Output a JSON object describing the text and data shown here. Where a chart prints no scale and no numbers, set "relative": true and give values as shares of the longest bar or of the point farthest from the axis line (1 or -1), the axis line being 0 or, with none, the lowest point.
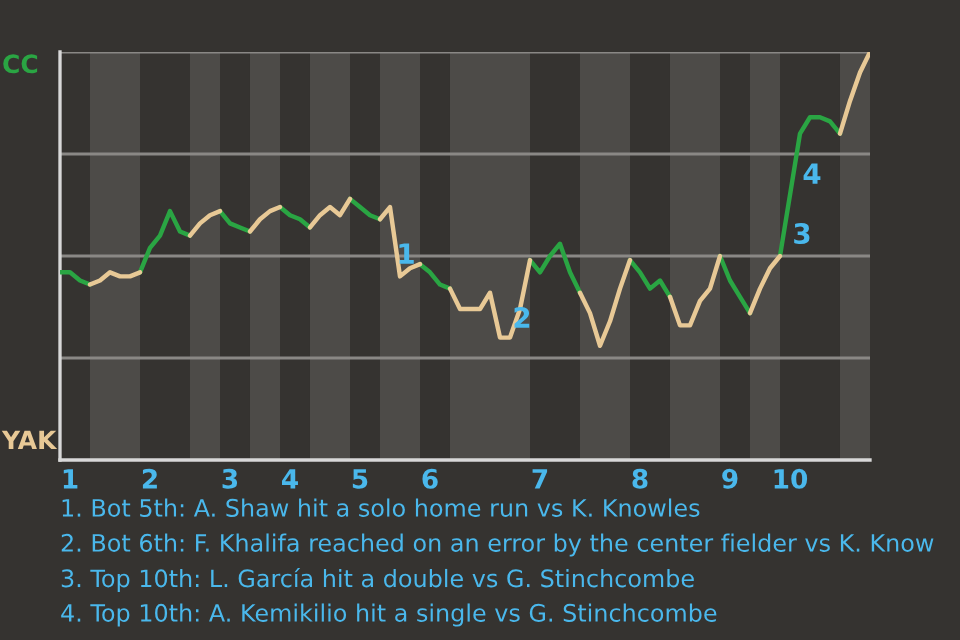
{
  "chart_data": {
    "type": "line",
    "relative": true,
    "categories": [
      null,
      "1",
      null,
      null,
      null,
      null,
      null,
      null,
      null,
      "2",
      null,
      null,
      null,
      null,
      null,
      null,
      null,
      "3",
      null,
      null,
      null,
      null,
      null,
      "4",
      null,
      null,
      null,
      null,
      null,
      null,
      "5",
      null,
      null,
      null,
      null,
      null,
      null,
      "6",
      null,
      null,
      null,
      null,
      null,
      null,
      null,
      null,
      null,
      null,
      "7",
      null,
      null,
      null,
      null,
      null,
      null,
      null,
      null,
      null,
      "8",
      null,
      null,
      null,
      null,
      null,
      null,
      null,
      null,
      "9",
      null,
      null,
      null,
      null,
      null,
      "10",
      null,
      null,
      null,
      null,
      null,
      null,
      null,
      null
    ],
    "series": [
      {
        "color": "#2aa543",
        "values": [
          0.46,
          0.46,
          0.44,
          0.43,
          null,
          null,
          null,
          null,
          0.46,
          0.52,
          0.55,
          0.61,
          0.56,
          0.55,
          null,
          null,
          0.61,
          0.58,
          0.57,
          0.56,
          null,
          null,
          0.62,
          0.6,
          0.59,
          0.57,
          null,
          null,
          null,
          0.64,
          0.62,
          0.6,
          0.59,
          null,
          null,
          null,
          0.48,
          0.46,
          0.43,
          0.42,
          null,
          null,
          null,
          null,
          null,
          null,
          null,
          0.49,
          0.46,
          0.5,
          0.53,
          0.46,
          0.41,
          null,
          null,
          null,
          null,
          0.49,
          0.46,
          0.42,
          0.44,
          0.4,
          null,
          null,
          null,
          null,
          0.5,
          0.44,
          0.4,
          0.36,
          null,
          null,
          0.5,
          0.65,
          0.8,
          0.84,
          0.84,
          0.83,
          0.8,
          null,
          null,
          null
        ]
      },
      {
        "color": "#e8c996",
        "values": [
          null,
          null,
          null,
          0.43,
          0.44,
          0.46,
          0.45,
          0.45,
          0.46,
          null,
          null,
          null,
          null,
          0.55,
          0.58,
          0.6,
          0.61,
          null,
          null,
          0.56,
          0.59,
          0.61,
          0.62,
          null,
          null,
          0.57,
          0.6,
          0.62,
          0.6,
          0.64,
          null,
          null,
          0.59,
          0.62,
          0.45,
          0.47,
          0.48,
          null,
          null,
          0.42,
          0.37,
          0.37,
          0.37,
          0.41,
          0.3,
          0.3,
          0.37,
          0.49,
          null,
          null,
          null,
          null,
          0.41,
          0.36,
          0.28,
          0.34,
          0.42,
          0.49,
          null,
          null,
          null,
          0.4,
          0.33,
          0.33,
          0.39,
          0.42,
          0.5,
          null,
          null,
          0.36,
          0.42,
          0.47,
          0.5,
          null,
          null,
          null,
          null,
          null,
          0.8,
          0.88,
          0.95,
          1
        ]
      }
    ],
    "grid": "y",
    "marker": "none",
    "line_style": "solid",
    "annotations": [
      "CC",
      "YAK",
      "1",
      "2",
      "3",
      "4",
      "1. Bot 5th: A. Shaw hit a solo home run vs K. Knowles",
      "2. Bot 6th: F. Khalifa reached on an error by the center fielder vs K. Know",
      "3. Top 10th: L. García hit a double vs G. Stinchcombe",
      "4. Top 10th: A. Kemikilio hit a single vs G. Stinchcombe"
    ]
  }
}
